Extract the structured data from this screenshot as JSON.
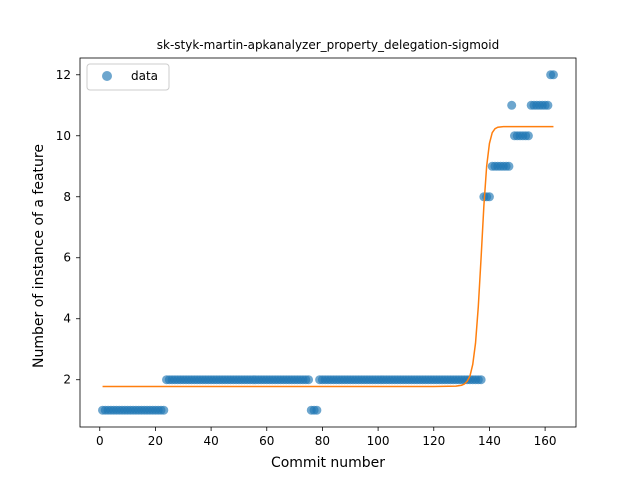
{
  "chart_data": {
    "type": "scatter",
    "title": "sk-styk-martin-apkanalyzer_property_delegation-sigmoid",
    "xlabel": "Commit number",
    "ylabel": "Number of instance of a feature",
    "xlim": [
      -7.1,
      171.1
    ],
    "ylim": [
      0.45,
      12.55
    ],
    "xticks": [
      0,
      20,
      40,
      60,
      80,
      100,
      120,
      140,
      160
    ],
    "yticks": [
      2,
      4,
      6,
      8,
      10,
      12
    ],
    "grid": false,
    "legend": {
      "placement": "upper-left",
      "entries": [
        "data"
      ]
    },
    "colors": {
      "data": "#1f77b4",
      "fit": "#ff7f0e"
    },
    "series": [
      {
        "name": "data",
        "kind": "scatter",
        "points": [
          [
            1,
            1
          ],
          [
            2,
            1
          ],
          [
            3,
            1
          ],
          [
            4,
            1
          ],
          [
            5,
            1
          ],
          [
            6,
            1
          ],
          [
            7,
            1
          ],
          [
            8,
            1
          ],
          [
            9,
            1
          ],
          [
            10,
            1
          ],
          [
            11,
            1
          ],
          [
            12,
            1
          ],
          [
            13,
            1
          ],
          [
            14,
            1
          ],
          [
            15,
            1
          ],
          [
            16,
            1
          ],
          [
            17,
            1
          ],
          [
            18,
            1
          ],
          [
            19,
            1
          ],
          [
            20,
            1
          ],
          [
            21,
            1
          ],
          [
            22,
            1
          ],
          [
            23,
            1
          ],
          [
            24,
            2
          ],
          [
            25,
            2
          ],
          [
            26,
            2
          ],
          [
            27,
            2
          ],
          [
            28,
            2
          ],
          [
            29,
            2
          ],
          [
            30,
            2
          ],
          [
            31,
            2
          ],
          [
            32,
            2
          ],
          [
            33,
            2
          ],
          [
            34,
            2
          ],
          [
            35,
            2
          ],
          [
            36,
            2
          ],
          [
            37,
            2
          ],
          [
            38,
            2
          ],
          [
            39,
            2
          ],
          [
            40,
            2
          ],
          [
            41,
            2
          ],
          [
            42,
            2
          ],
          [
            43,
            2
          ],
          [
            44,
            2
          ],
          [
            45,
            2
          ],
          [
            46,
            2
          ],
          [
            47,
            2
          ],
          [
            48,
            2
          ],
          [
            49,
            2
          ],
          [
            50,
            2
          ],
          [
            51,
            2
          ],
          [
            52,
            2
          ],
          [
            53,
            2
          ],
          [
            54,
            2
          ],
          [
            55,
            2
          ],
          [
            56,
            2
          ],
          [
            57,
            2
          ],
          [
            58,
            2
          ],
          [
            59,
            2
          ],
          [
            60,
            2
          ],
          [
            61,
            2
          ],
          [
            62,
            2
          ],
          [
            63,
            2
          ],
          [
            64,
            2
          ],
          [
            65,
            2
          ],
          [
            66,
            2
          ],
          [
            67,
            2
          ],
          [
            68,
            2
          ],
          [
            69,
            2
          ],
          [
            70,
            2
          ],
          [
            71,
            2
          ],
          [
            72,
            2
          ],
          [
            73,
            2
          ],
          [
            74,
            2
          ],
          [
            75,
            2
          ],
          [
            76,
            1
          ],
          [
            77,
            1
          ],
          [
            78,
            1
          ],
          [
            79,
            2
          ],
          [
            80,
            2
          ],
          [
            81,
            2
          ],
          [
            82,
            2
          ],
          [
            83,
            2
          ],
          [
            84,
            2
          ],
          [
            85,
            2
          ],
          [
            86,
            2
          ],
          [
            87,
            2
          ],
          [
            88,
            2
          ],
          [
            89,
            2
          ],
          [
            90,
            2
          ],
          [
            91,
            2
          ],
          [
            92,
            2
          ],
          [
            93,
            2
          ],
          [
            94,
            2
          ],
          [
            95,
            2
          ],
          [
            96,
            2
          ],
          [
            97,
            2
          ],
          [
            98,
            2
          ],
          [
            99,
            2
          ],
          [
            100,
            2
          ],
          [
            101,
            2
          ],
          [
            102,
            2
          ],
          [
            103,
            2
          ],
          [
            104,
            2
          ],
          [
            105,
            2
          ],
          [
            106,
            2
          ],
          [
            107,
            2
          ],
          [
            108,
            2
          ],
          [
            109,
            2
          ],
          [
            110,
            2
          ],
          [
            111,
            2
          ],
          [
            112,
            2
          ],
          [
            113,
            2
          ],
          [
            114,
            2
          ],
          [
            115,
            2
          ],
          [
            116,
            2
          ],
          [
            117,
            2
          ],
          [
            118,
            2
          ],
          [
            119,
            2
          ],
          [
            120,
            2
          ],
          [
            121,
            2
          ],
          [
            122,
            2
          ],
          [
            123,
            2
          ],
          [
            124,
            2
          ],
          [
            125,
            2
          ],
          [
            126,
            2
          ],
          [
            127,
            2
          ],
          [
            128,
            2
          ],
          [
            129,
            2
          ],
          [
            130,
            2
          ],
          [
            131,
            2
          ],
          [
            132,
            2
          ],
          [
            133,
            2
          ],
          [
            134,
            2
          ],
          [
            135,
            2
          ],
          [
            136,
            2
          ],
          [
            137,
            2
          ],
          [
            138,
            8
          ],
          [
            139,
            8
          ],
          [
            140,
            8
          ],
          [
            141,
            9
          ],
          [
            142,
            9
          ],
          [
            143,
            9
          ],
          [
            144,
            9
          ],
          [
            145,
            9
          ],
          [
            146,
            9
          ],
          [
            147,
            9
          ],
          [
            148,
            11
          ],
          [
            149,
            10
          ],
          [
            150,
            10
          ],
          [
            151,
            10
          ],
          [
            152,
            10
          ],
          [
            153,
            10
          ],
          [
            154,
            10
          ],
          [
            155,
            11
          ],
          [
            156,
            11
          ],
          [
            157,
            11
          ],
          [
            158,
            11
          ],
          [
            159,
            11
          ],
          [
            160,
            11
          ],
          [
            161,
            11
          ],
          [
            162,
            12
          ],
          [
            163,
            12
          ]
        ]
      },
      {
        "kind": "line",
        "points": [
          [
            1,
            1.78
          ],
          [
            120,
            1.78
          ],
          [
            128,
            1.79
          ],
          [
            130,
            1.82
          ],
          [
            131,
            1.86
          ],
          [
            132,
            1.95
          ],
          [
            133,
            2.12
          ],
          [
            134,
            2.5
          ],
          [
            135,
            3.2
          ],
          [
            136,
            4.4
          ],
          [
            137,
            6.0
          ],
          [
            138,
            7.7
          ],
          [
            139,
            9.0
          ],
          [
            140,
            9.75
          ],
          [
            141,
            10.1
          ],
          [
            142,
            10.23
          ],
          [
            143,
            10.28
          ],
          [
            145,
            10.3
          ],
          [
            150,
            10.3
          ],
          [
            163,
            10.3
          ]
        ]
      }
    ]
  }
}
